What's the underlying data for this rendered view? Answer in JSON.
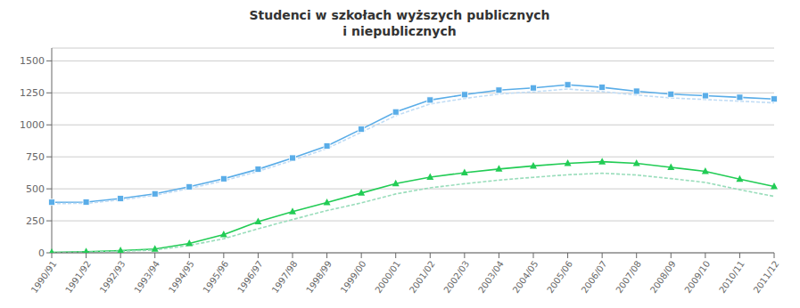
{
  "chart_data": {
    "type": "line",
    "title": "Studenci w szkołach wyższych publicznych\ni niepublicznych",
    "categories": [
      "1990/91",
      "1991/92",
      "1992/93",
      "1993/94",
      "1994/95",
      "1995/96",
      "1996/97",
      "1997/98",
      "1998/99",
      "1999/00",
      "2000/01",
      "2001/02",
      "2002/03",
      "2003/04",
      "2004/05",
      "2005/06",
      "2006/07",
      "2007/08",
      "2008/09",
      "2009/10",
      "2010/11",
      "2011/12"
    ],
    "series": [
      {
        "color": "#5aade8",
        "line_style": "solid",
        "marker": "square",
        "values": [
          395,
          396,
          424,
          461,
          516,
          579,
          653,
          741,
          835,
          966,
          1101,
          1194,
          1236,
          1271,
          1289,
          1313,
          1293,
          1263,
          1240,
          1228,
          1215,
          1202
        ]
      },
      {
        "color": "#c0dcf5",
        "line_style": "dashed",
        "marker": "none",
        "values": [
          385,
          386,
          414,
          449,
          503,
          563,
          636,
          722,
          815,
          942,
          1072,
          1163,
          1206,
          1241,
          1258,
          1280,
          1260,
          1233,
          1210,
          1198,
          1185,
          1172
        ]
      },
      {
        "color": "#22cc55",
        "line_style": "solid",
        "marker": "triangle",
        "values": [
          4,
          8,
          17,
          30,
          73,
          143,
          243,
          322,
          393,
          467,
          541,
          591,
          626,
          655,
          679,
          699,
          712,
          699,
          668,
          637,
          576,
          518
        ]
      },
      {
        "color": "#99ddbb",
        "line_style": "dashed",
        "marker": "none",
        "values": [
          2,
          5,
          12,
          22,
          58,
          110,
          188,
          260,
          330,
          390,
          460,
          508,
          540,
          568,
          590,
          610,
          622,
          608,
          580,
          550,
          493,
          441
        ]
      }
    ],
    "ylim": [
      0,
      1600
    ],
    "yticks": [
      0,
      250,
      500,
      750,
      1000,
      1250,
      1500
    ],
    "grid": true
  }
}
